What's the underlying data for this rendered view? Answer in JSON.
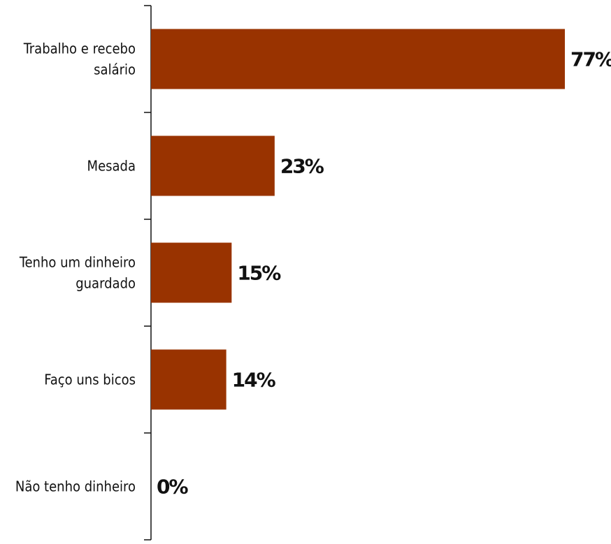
{
  "chart_data": {
    "type": "bar",
    "orientation": "horizontal",
    "categories": [
      "Trabalho e recebo salário",
      "Mesada",
      "Tenho um dinheiro guardado",
      "Faço uns bicos",
      "Não tenho dinheiro"
    ],
    "category_lines": [
      [
        "Trabalho e recebo",
        "salário"
      ],
      [
        "Mesada"
      ],
      [
        "Tenho um dinheiro",
        "guardado"
      ],
      [
        "Faço uns bicos"
      ],
      [
        "Não tenho dinheiro"
      ]
    ],
    "values": [
      77,
      23,
      15,
      14,
      0
    ],
    "value_labels": [
      "77%",
      "23%",
      "15%",
      "14%",
      "0%"
    ],
    "bar_color": "#993300",
    "xlim": [
      0,
      77
    ],
    "grid": false,
    "title": "",
    "xlabel": "",
    "ylabel": ""
  }
}
